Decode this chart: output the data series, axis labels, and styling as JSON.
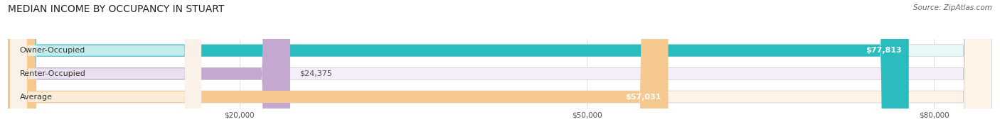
{
  "title": "MEDIAN INCOME BY OCCUPANCY IN STUART",
  "source": "Source: ZipAtlas.com",
  "categories": [
    "Owner-Occupied",
    "Renter-Occupied",
    "Average"
  ],
  "values": [
    77813,
    24375,
    57031
  ],
  "labels": [
    "$77,813",
    "$24,375",
    "$57,031"
  ],
  "bar_colors": [
    "#2bbcbf",
    "#c4a8d0",
    "#f5c990"
  ],
  "bar_bg_colors": [
    "#e8f7f7",
    "#f3eef7",
    "#fdf3e7"
  ],
  "xlim": [
    0,
    85000
  ],
  "xticks": [
    20000,
    50000,
    80000
  ],
  "xtick_labels": [
    "$20,000",
    "$50,000",
    "$80,000"
  ],
  "title_fontsize": 10,
  "source_fontsize": 7.5,
  "label_fontsize": 8,
  "bar_height": 0.52,
  "background_color": "#ffffff"
}
